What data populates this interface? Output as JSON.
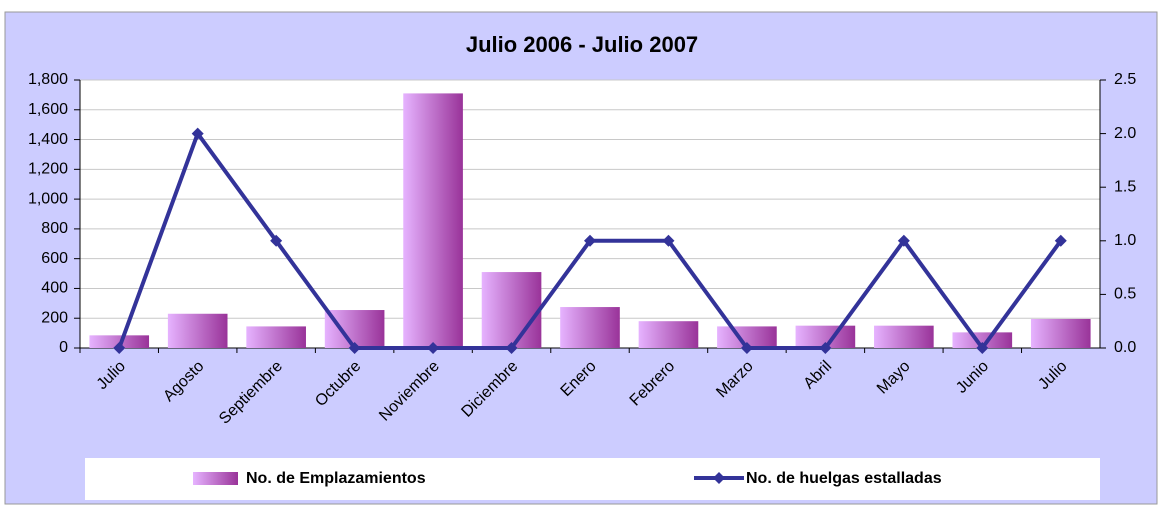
{
  "chart_data": {
    "type": "bar",
    "title": "Julio 2006 - Julio 2007",
    "categories": [
      "Julio",
      "Agosto",
      "Septiembre",
      "Octubre",
      "Noviembre",
      "Diciembre",
      "Enero",
      "Febrero",
      "Marzo",
      "Abril",
      "Mayo",
      "Junio",
      "Julio"
    ],
    "series": [
      {
        "name": "No. de Emplazamientos",
        "type": "bar",
        "color": "#993399",
        "values": [
          85,
          230,
          145,
          255,
          1710,
          510,
          275,
          180,
          145,
          150,
          150,
          105,
          195
        ]
      },
      {
        "name": "No. de huelgas estalladas",
        "type": "line",
        "axis": "y2",
        "color": "#333399",
        "values": [
          0,
          2,
          1,
          0,
          0,
          0,
          1,
          1,
          0,
          0,
          1,
          0,
          1
        ]
      }
    ],
    "ylim": [
      0,
      1800
    ],
    "yticks": [
      0,
      200,
      400,
      600,
      800,
      {
        "value": 1000,
        "label": "1,000"
      },
      {
        "value": 1200,
        "label": "1,200"
      },
      {
        "value": 1400,
        "label": "1,400"
      },
      {
        "value": 1600,
        "label": "1,600"
      },
      {
        "value": 1800,
        "label": "1,800"
      }
    ],
    "y2lim": [
      0,
      2.5
    ],
    "y2ticks": [
      {
        "value": 0,
        "label": "0.0"
      },
      0.5,
      {
        "value": 1,
        "label": "1.0"
      },
      1.5,
      {
        "value": 2,
        "label": "2.0"
      },
      2.5
    ],
    "grid": true
  }
}
